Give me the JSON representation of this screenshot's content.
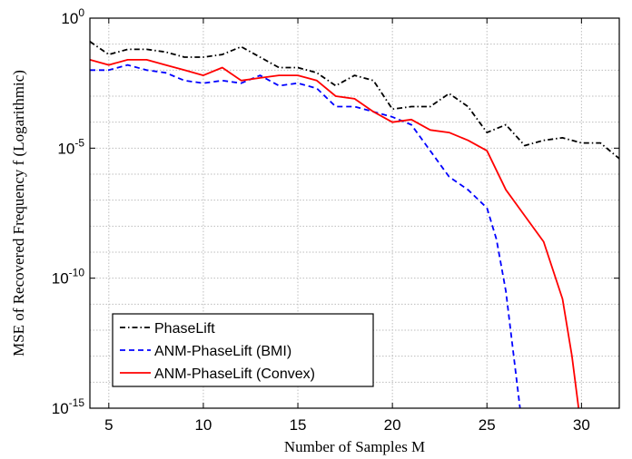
{
  "chart_data": {
    "type": "line",
    "xlabel": "Number of Samples M",
    "ylabel": "MSE of Recovered Frequency f (Logarithmic)",
    "xlim": [
      4,
      32
    ],
    "ylim_log10": [
      -15,
      0
    ],
    "yscale": "log",
    "x_ticks": [
      5,
      10,
      15,
      20,
      25,
      30
    ],
    "y_ticks": [
      {
        "exp": 0,
        "label": "10",
        "sup": "0"
      },
      {
        "exp": -5,
        "label": "10",
        "sup": "-5"
      },
      {
        "exp": -10,
        "label": "10",
        "sup": "-10"
      },
      {
        "exp": -15,
        "label": "10",
        "sup": "-15"
      }
    ],
    "grid": true,
    "legend_position": "bottom-left",
    "series": [
      {
        "name": "PhaseLift",
        "color": "#000000",
        "style": "dashdot",
        "x": [
          4,
          5,
          6,
          7,
          8,
          9,
          10,
          11,
          12,
          13,
          14,
          15,
          16,
          17,
          18,
          19,
          20,
          21,
          22,
          23,
          24,
          25,
          26,
          27,
          28,
          29,
          30,
          31,
          32
        ],
        "log10_y": [
          -0.9,
          -1.4,
          -1.2,
          -1.2,
          -1.3,
          -1.5,
          -1.5,
          -1.4,
          -1.1,
          -1.5,
          -1.9,
          -1.9,
          -2.1,
          -2.6,
          -2.2,
          -2.4,
          -3.5,
          -3.4,
          -3.4,
          -2.9,
          -3.4,
          -4.4,
          -4.1,
          -4.9,
          -4.7,
          -4.6,
          -4.8,
          -4.8,
          -5.4
        ]
      },
      {
        "name": "ANM-PhaseLift (BMI)",
        "color": "#0000ff",
        "style": "dashed",
        "x": [
          4,
          5,
          6,
          7,
          8,
          9,
          10,
          11,
          12,
          13,
          14,
          15,
          16,
          17,
          18,
          19,
          20,
          21,
          22,
          23,
          24,
          25,
          25.5,
          26,
          26.5,
          26.75
        ],
        "log10_y": [
          -2.0,
          -2.0,
          -1.8,
          -2.0,
          -2.1,
          -2.4,
          -2.5,
          -2.4,
          -2.5,
          -2.2,
          -2.6,
          -2.5,
          -2.7,
          -3.4,
          -3.4,
          -3.6,
          -3.8,
          -4.1,
          -5.1,
          -6.1,
          -6.6,
          -7.3,
          -8.5,
          -10.5,
          -13.5,
          -15.0
        ]
      },
      {
        "name": "ANM-PhaseLift (Convex)",
        "color": "#ff0000",
        "style": "solid",
        "x": [
          4,
          5,
          6,
          7,
          8,
          9,
          10,
          11,
          12,
          13,
          14,
          15,
          16,
          17,
          18,
          19,
          20,
          21,
          22,
          23,
          24,
          25,
          26,
          27,
          28,
          29,
          29.5,
          29.85
        ],
        "log10_y": [
          -1.6,
          -1.8,
          -1.6,
          -1.6,
          -1.8,
          -2.0,
          -2.2,
          -1.9,
          -2.4,
          -2.3,
          -2.2,
          -2.2,
          -2.4,
          -3.0,
          -3.1,
          -3.6,
          -4.0,
          -3.9,
          -4.3,
          -4.4,
          -4.7,
          -5.1,
          -6.6,
          -7.6,
          -8.6,
          -10.8,
          -13.0,
          -15.0
        ]
      }
    ]
  }
}
